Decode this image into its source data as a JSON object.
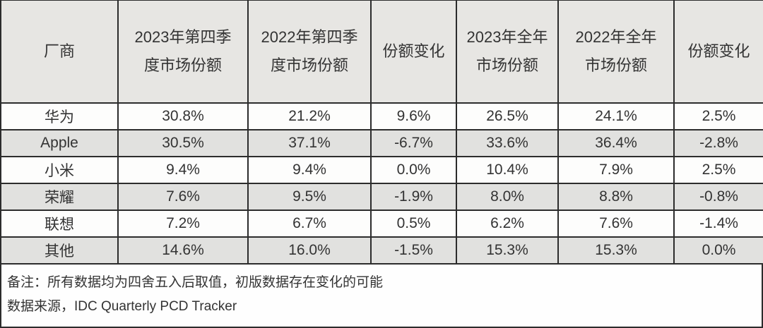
{
  "chart_data": {
    "type": "table",
    "columns": [
      "厂商",
      "2023年第四季度市场份额",
      "2022年第四季度市场份额",
      "份额变化",
      "2023年全年市场份额",
      "2022年全年市场份额",
      "份额变化"
    ],
    "rows": [
      [
        "华为",
        "30.8%",
        "21.2%",
        "9.6%",
        "26.5%",
        "24.1%",
        "2.5%"
      ],
      [
        "Apple",
        "30.5%",
        "37.1%",
        "-6.7%",
        "33.6%",
        "36.4%",
        "-2.8%"
      ],
      [
        "小米",
        "9.4%",
        "9.4%",
        "0.0%",
        "10.4%",
        "7.9%",
        "2.5%"
      ],
      [
        "荣耀",
        "7.6%",
        "9.5%",
        "-1.9%",
        "8.0%",
        "8.8%",
        "-0.8%"
      ],
      [
        "联想",
        "7.2%",
        "6.7%",
        "0.5%",
        "6.2%",
        "7.6%",
        "-1.4%"
      ],
      [
        "其他",
        "14.6%",
        "16.0%",
        "-1.5%",
        "15.3%",
        "15.3%",
        "0.0%"
      ]
    ],
    "notes": [
      "备注：所有数据均为四舍五入后取值，初版数据存在变化的可能",
      "数据来源，IDC Quarterly PCD Tracker"
    ],
    "source": "IDC Quarterly PCD Tracker"
  },
  "table": {
    "display_headers": [
      "厂商",
      "2023年第四季\n度市场份额",
      "2022年第四季\n度市场份额",
      "份额变化",
      "2023年全年\n市场份额",
      "2022年全年\n市场份额",
      "份额变化"
    ]
  },
  "colors": {
    "header_bg": "#e7e6e3",
    "stripe_bg": "#e1e1df",
    "row_bg": "#fdfdfc",
    "border": "#2c2c2c",
    "text": "#333333"
  }
}
